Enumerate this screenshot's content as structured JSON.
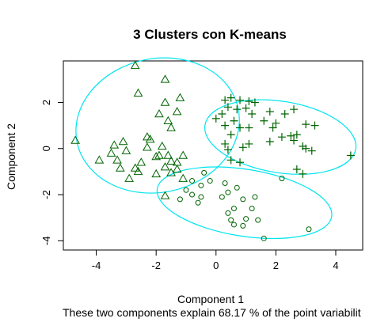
{
  "chart_data": {
    "type": "scatter",
    "title": "3 Clusters con K-means",
    "xlabel": "Component 1",
    "ylabel": "Component 2",
    "subtitle": "These two components explain 68.17 % of the point variabilit",
    "xlim": [
      -5.1,
      4.9
    ],
    "ylim": [
      -4.4,
      3.8
    ],
    "xticks": [
      -4,
      -2,
      0,
      2,
      4
    ],
    "yticks": [
      -4,
      -2,
      0,
      2
    ],
    "grid": false,
    "ellipse_color": "#00e5ee",
    "series": [
      {
        "cluster": 1,
        "marker": "triangle",
        "color": "#006400",
        "points": [
          [
            -2.7,
            3.6
          ],
          [
            -1.7,
            3.0
          ],
          [
            -2.6,
            2.4
          ],
          [
            -1.2,
            2.2
          ],
          [
            -1.7,
            2.0
          ],
          [
            -1.9,
            1.5
          ],
          [
            -1.3,
            1.6
          ],
          [
            -1.5,
            0.9
          ],
          [
            -1.6,
            1.2
          ],
          [
            -4.7,
            0.35
          ],
          [
            -3.4,
            0.15
          ],
          [
            -3.1,
            0.3
          ],
          [
            -2.3,
            0.5
          ],
          [
            -2.2,
            0.4
          ],
          [
            -1.8,
            0.1
          ],
          [
            -3.5,
            -0.2
          ],
          [
            -3.0,
            -0.1
          ],
          [
            -2.3,
            0.05
          ],
          [
            -2.0,
            -0.35
          ],
          [
            -1.9,
            -0.3
          ],
          [
            -1.6,
            -0.3
          ],
          [
            -1.1,
            -0.3
          ],
          [
            -1.5,
            -0.55
          ],
          [
            -1.3,
            -0.6
          ],
          [
            -3.9,
            -0.5
          ],
          [
            -3.3,
            -0.5
          ],
          [
            -3.2,
            -0.85
          ],
          [
            -2.5,
            -0.6
          ],
          [
            -2.7,
            -0.85
          ],
          [
            -2.6,
            -1.0
          ],
          [
            -1.7,
            -0.8
          ],
          [
            -1.3,
            -0.9
          ],
          [
            -1.5,
            -1.05
          ],
          [
            -2.0,
            -1.1
          ],
          [
            -2.9,
            -1.3
          ],
          [
            -1.7,
            -2.05
          ],
          [
            -1.1,
            -1.3
          ]
        ]
      },
      {
        "cluster": 2,
        "marker": "plus",
        "color": "#006400",
        "points": [
          [
            0.3,
            2.1
          ],
          [
            0.5,
            2.2
          ],
          [
            0.8,
            2.1
          ],
          [
            1.1,
            2.05
          ],
          [
            1.3,
            2.0
          ],
          [
            0.4,
            1.8
          ],
          [
            0.7,
            1.7
          ],
          [
            1.0,
            1.75
          ],
          [
            1.8,
            1.6
          ],
          [
            2.6,
            1.7
          ],
          [
            0.2,
            1.5
          ],
          [
            1.2,
            1.5
          ],
          [
            2.3,
            1.5
          ],
          [
            0.0,
            1.3
          ],
          [
            0.6,
            1.2
          ],
          [
            1.6,
            1.2
          ],
          [
            2.0,
            1.1
          ],
          [
            3.0,
            1.05
          ],
          [
            3.3,
            1.0
          ],
          [
            0.3,
            1.0
          ],
          [
            0.8,
            0.9
          ],
          [
            1.1,
            0.9
          ],
          [
            1.9,
            0.9
          ],
          [
            0.5,
            0.6
          ],
          [
            2.2,
            0.5
          ],
          [
            2.5,
            0.55
          ],
          [
            2.7,
            0.6
          ],
          [
            2.6,
            0.35
          ],
          [
            1.8,
            0.3
          ],
          [
            0.3,
            0.2
          ],
          [
            1.1,
            0.2
          ],
          [
            2.9,
            0.1
          ],
          [
            3.0,
            0.0
          ],
          [
            0.9,
            0.05
          ],
          [
            0.4,
            -0.05
          ],
          [
            3.2,
            -0.1
          ],
          [
            0.5,
            -0.5
          ],
          [
            0.8,
            -0.6
          ],
          [
            2.7,
            -0.9
          ],
          [
            2.9,
            -1.1
          ],
          [
            4.5,
            -0.3
          ]
        ]
      },
      {
        "cluster": 3,
        "marker": "circle",
        "color": "#006400",
        "points": [
          [
            -0.4,
            -1.05
          ],
          [
            -0.8,
            -1.4
          ],
          [
            -0.2,
            -1.4
          ],
          [
            -0.5,
            -1.6
          ],
          [
            -1.0,
            -1.8
          ],
          [
            0.3,
            -1.5
          ],
          [
            -0.8,
            -2.0
          ],
          [
            0.4,
            -1.9
          ],
          [
            0.7,
            -1.7
          ],
          [
            -0.5,
            -2.1
          ],
          [
            0.2,
            -2.1
          ],
          [
            -1.2,
            -2.2
          ],
          [
            -0.6,
            -2.35
          ],
          [
            0.9,
            -2.2
          ],
          [
            0.6,
            -2.6
          ],
          [
            1.3,
            -2.1
          ],
          [
            1.2,
            -2.6
          ],
          [
            0.4,
            -2.8
          ],
          [
            2.2,
            -1.3
          ],
          [
            0.5,
            -3.1
          ],
          [
            1.0,
            -3.05
          ],
          [
            1.4,
            -3.1
          ],
          [
            0.6,
            -3.3
          ],
          [
            0.9,
            -3.35
          ],
          [
            3.1,
            -3.5
          ],
          [
            1.6,
            -3.9
          ]
        ]
      }
    ],
    "ellipses": [
      {
        "cluster": 1,
        "center": [
          -1.95,
          1.0
        ],
        "rx": 2.75,
        "ry": 2.9,
        "angle_deg": 12
      },
      {
        "cluster": 2,
        "center": [
          2.15,
          0.5
        ],
        "rx": 2.55,
        "ry": 1.55,
        "angle_deg": -9
      },
      {
        "cluster": 3,
        "center": [
          0.95,
          -2.35
        ],
        "rx": 2.95,
        "ry": 1.45,
        "angle_deg": -9
      }
    ]
  }
}
